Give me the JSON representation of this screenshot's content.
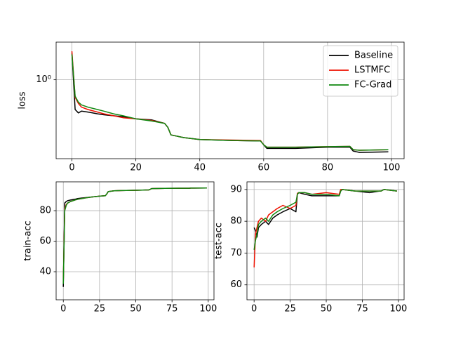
{
  "chart_data": [
    {
      "type": "line",
      "ylabel": "loss",
      "yscale": "log",
      "grid": true,
      "legend": "upper right",
      "x": [
        0,
        1,
        2,
        3,
        5,
        8,
        10,
        13,
        16,
        20,
        25,
        29,
        30,
        31,
        35,
        40,
        50,
        59,
        60,
        61,
        70,
        80,
        87,
        88,
        90,
        99
      ],
      "xlim": [
        -4.95,
        103.95
      ],
      "xticks": [
        0,
        20,
        40,
        60,
        80,
        100
      ],
      "ylim": [
        0.1,
        3
      ],
      "yticks": [
        {
          "value": 1,
          "label": "10⁰"
        }
      ],
      "series": [
        {
          "name": "Baseline",
          "color": "#000000",
          "values": [
            2.2,
            0.42,
            0.38,
            0.4,
            0.39,
            0.37,
            0.36,
            0.35,
            0.34,
            0.32,
            0.31,
            0.28,
            0.25,
            0.2,
            0.185,
            0.175,
            0.17,
            0.168,
            0.15,
            0.135,
            0.135,
            0.14,
            0.14,
            0.125,
            0.12,
            0.122
          ]
        },
        {
          "name": "LSTMFC",
          "color": "#ee1100",
          "values": [
            2.3,
            0.6,
            0.5,
            0.45,
            0.42,
            0.39,
            0.37,
            0.35,
            0.33,
            0.32,
            0.305,
            0.28,
            0.25,
            0.2,
            0.185,
            0.175,
            0.172,
            0.17,
            0.15,
            0.14,
            0.14,
            0.142,
            0.143,
            0.13,
            0.128,
            0.13
          ]
        },
        {
          "name": "FC-Grad",
          "color": "#118811",
          "values": [
            2.1,
            0.62,
            0.52,
            0.48,
            0.45,
            0.42,
            0.4,
            0.37,
            0.35,
            0.32,
            0.3,
            0.28,
            0.25,
            0.2,
            0.185,
            0.175,
            0.17,
            0.168,
            0.15,
            0.14,
            0.14,
            0.142,
            0.143,
            0.13,
            0.128,
            0.13
          ]
        }
      ]
    },
    {
      "type": "line",
      "ylabel": "train-acc",
      "grid": true,
      "x": [
        0,
        1,
        2,
        3,
        5,
        8,
        10,
        13,
        16,
        20,
        25,
        29,
        30,
        31,
        35,
        40,
        50,
        59,
        60,
        61,
        70,
        80,
        87,
        88,
        90,
        99
      ],
      "xlim": [
        -4.95,
        103.95
      ],
      "xticks": [
        0,
        25,
        50,
        75,
        100
      ],
      "ylim": [
        21.6,
        98.9
      ],
      "yticks": [
        40,
        60,
        80
      ],
      "series": [
        {
          "color": "#000000",
          "values": [
            30,
            85,
            86,
            86.5,
            87,
            87.5,
            88,
            88.3,
            88.6,
            89,
            89.5,
            89.8,
            91,
            92.5,
            93,
            93.2,
            93.4,
            93.6,
            94,
            94.5,
            94.6,
            94.7,
            94.7,
            94.8,
            94.8,
            94.9
          ]
        },
        {
          "color": "#ee1100",
          "values": [
            33,
            81,
            84,
            85,
            86,
            87,
            87.5,
            88,
            88.5,
            89,
            89.5,
            89.8,
            91,
            92.5,
            93,
            93.2,
            93.4,
            93.6,
            94,
            94.5,
            94.6,
            94.7,
            94.7,
            94.8,
            94.8,
            94.9
          ]
        },
        {
          "color": "#118811",
          "values": [
            32,
            80,
            83.5,
            85,
            86,
            87,
            87.5,
            88,
            88.5,
            89,
            89.5,
            89.8,
            91,
            92.5,
            93,
            93.2,
            93.4,
            93.6,
            94,
            94.5,
            94.6,
            94.7,
            94.7,
            94.8,
            94.8,
            94.9
          ]
        }
      ]
    },
    {
      "type": "line",
      "ylabel": "test-acc",
      "grid": true,
      "x": [
        0,
        1,
        2,
        3,
        5,
        8,
        10,
        13,
        16,
        20,
        25,
        29,
        30,
        31,
        35,
        40,
        50,
        59,
        60,
        61,
        70,
        80,
        87,
        88,
        90,
        99
      ],
      "xlim": [
        -4.95,
        103.95
      ],
      "xticks": [
        0,
        25,
        50,
        75,
        100
      ],
      "ylim": [
        55.3,
        92.4
      ],
      "yticks": [
        60,
        70,
        80,
        90
      ],
      "series": [
        {
          "color": "#000000",
          "values": [
            78,
            77,
            75,
            78,
            79,
            80,
            79,
            81,
            82,
            83,
            84,
            83,
            88.5,
            89,
            88.5,
            88,
            88,
            88,
            89.5,
            90,
            89.5,
            89,
            89.5,
            89.5,
            90,
            89.5
          ]
        },
        {
          "color": "#ee1100",
          "values": [
            65.5,
            76,
            78,
            80,
            81,
            80,
            82,
            83,
            84,
            85,
            84,
            85,
            88.8,
            89,
            89,
            88.5,
            89,
            88.5,
            90,
            90,
            89.5,
            89.5,
            89.5,
            89.5,
            90,
            89.5
          ]
        },
        {
          "color": "#118811",
          "values": [
            71,
            74,
            76,
            79,
            80,
            81,
            80,
            82,
            83,
            84,
            85,
            86,
            88.5,
            89,
            89,
            88.5,
            88.5,
            88,
            89.5,
            90,
            89.5,
            89.5,
            89.5,
            89.5,
            90,
            89.5
          ]
        }
      ]
    }
  ]
}
